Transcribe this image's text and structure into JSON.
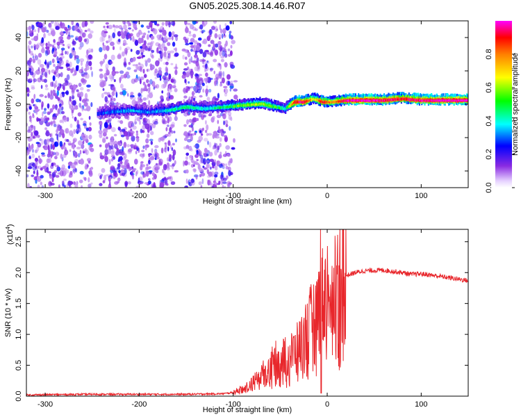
{
  "figure_title": "GN05.2025.308.14.46.R07",
  "chart_data": [
    {
      "type": "heatmap",
      "title": "GN05.2025.308.14.46.R07",
      "xlabel": "Height of straight line (km)",
      "ylabel": "Frequency (Hz)",
      "xlim": [
        -320,
        150
      ],
      "ylim": [
        -50,
        50
      ],
      "xticks": [
        -300,
        -200,
        -100,
        0,
        100
      ],
      "yticks": [
        -40,
        -20,
        0,
        20,
        40
      ],
      "colorbar": {
        "label": "Normalized spectral amplitude",
        "range": [
          0.0,
          1.0
        ],
        "ticks": [
          "0.0",
          "0.2",
          "0.4",
          "0.6",
          "0.8"
        ],
        "colors": [
          "#e8d8ff",
          "#8a2be2",
          "#0000ff",
          "#00ffff",
          "#00ff00",
          "#ffff00",
          "#ff8000",
          "#ff0000",
          "#ff00ff"
        ]
      },
      "features": {
        "noise_region_x": [
          -320,
          -110
        ],
        "signal_trace": {
          "x": [
            -245,
            -230,
            -210,
            -190,
            -170,
            -150,
            -130,
            -110,
            -90,
            -70,
            -55,
            -45,
            -35,
            -25,
            -15,
            -5,
            5,
            20,
            40,
            60,
            80,
            100,
            120,
            150
          ],
          "freq": [
            -6,
            -5,
            -4,
            -5,
            -4,
            -2,
            -3,
            -2,
            -1,
            0,
            -2,
            -3,
            1,
            1,
            3,
            1,
            1,
            2,
            2,
            2,
            3,
            2,
            2,
            2
          ],
          "amplitude": [
            0.25,
            0.3,
            0.35,
            0.3,
            0.4,
            0.45,
            0.4,
            0.45,
            0.55,
            0.6,
            0.5,
            0.4,
            0.9,
            0.95,
            0.6,
            0.9,
            0.7,
            0.95,
            1.0,
            0.95,
            0.9,
            0.95,
            1.0,
            1.0
          ]
        }
      }
    },
    {
      "type": "line",
      "xlabel": "Height of straight line (km)",
      "ylabel": "SNR (10 * v/v)",
      "y_scale_label": "(x10",
      "y_scale_exponent": "4",
      "xlim": [
        -320,
        150
      ],
      "ylim": [
        0,
        2.7
      ],
      "xticks": [
        -300,
        -200,
        -100,
        0,
        100
      ],
      "yticks": [
        "0.0",
        "0.5",
        "1.0",
        "1.5",
        "2.0",
        "2.5"
      ],
      "line_color": "#e8262b",
      "series": [
        {
          "x": [
            -320,
            -250,
            -200,
            -150,
            -110,
            -100,
            -90,
            -80,
            -70,
            -60,
            -50,
            -40,
            -30,
            -20,
            -10,
            -5,
            0,
            10,
            20,
            30,
            40,
            60,
            80,
            90,
            100,
            120,
            150
          ],
          "values": [
            0.02,
            0.03,
            0.03,
            0.03,
            0.04,
            0.06,
            0.12,
            0.2,
            0.35,
            0.5,
            0.65,
            0.65,
            0.8,
            1.1,
            1.4,
            1.6,
            1.7,
            1.85,
            1.95,
            2.0,
            2.03,
            2.04,
            2.0,
            1.97,
            1.98,
            1.94,
            1.87
          ]
        }
      ],
      "spike": {
        "x": -7,
        "value": 2.7
      }
    }
  ]
}
